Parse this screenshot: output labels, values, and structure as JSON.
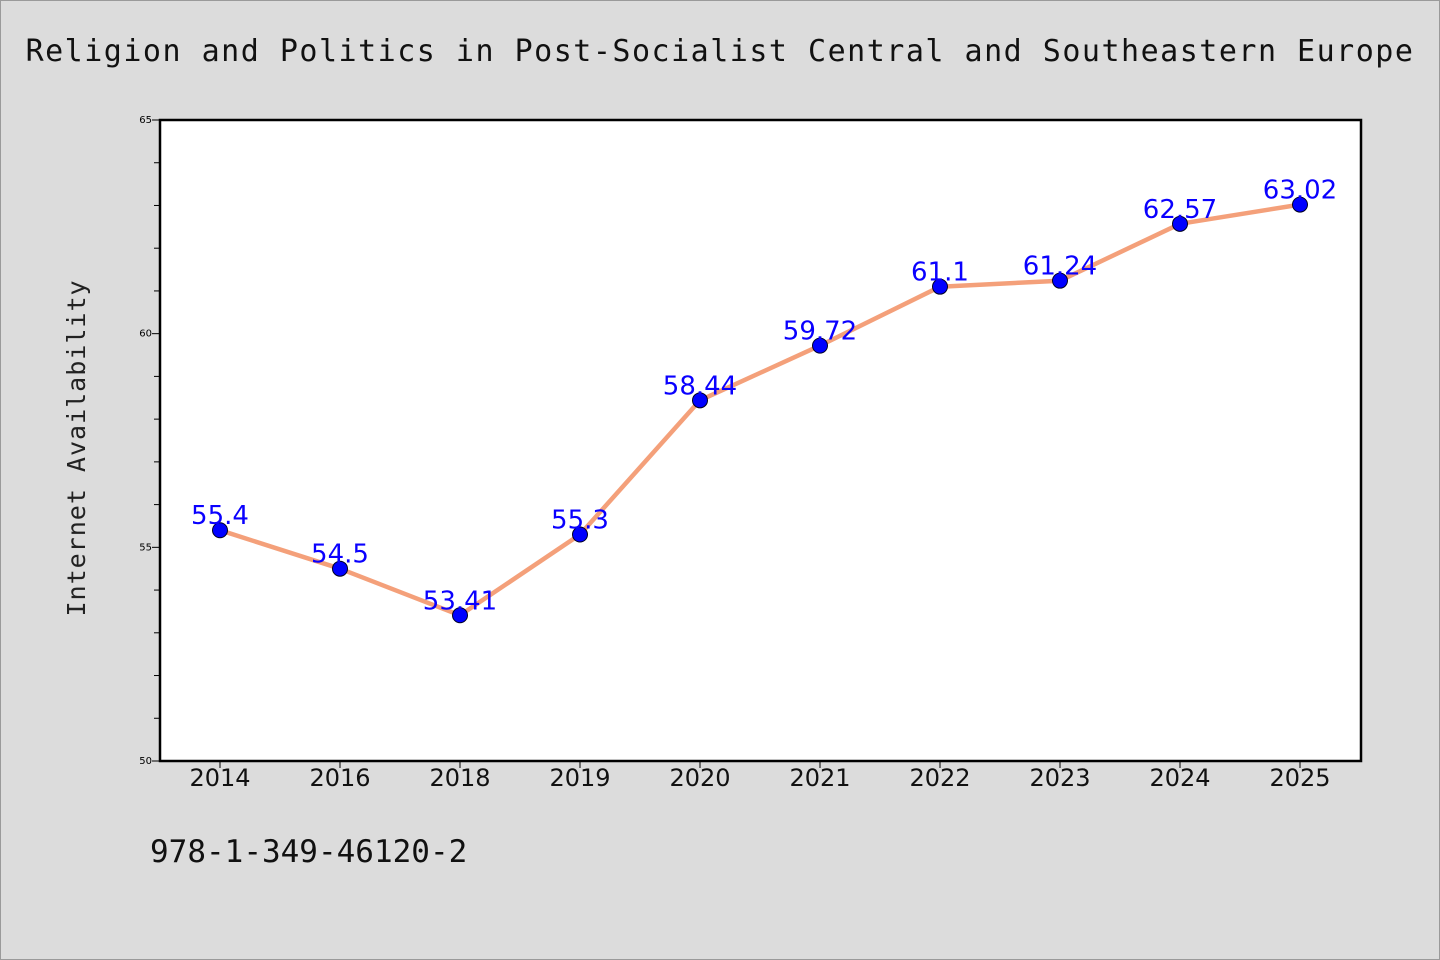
{
  "chart_data": {
    "type": "line",
    "title": "Religion and Politics in Post-Socialist Central and Southeastern Europe",
    "xlabel": "",
    "ylabel": "Internet Availability",
    "categories": [
      "2014",
      "2016",
      "2018",
      "2019",
      "2020",
      "2021",
      "2022",
      "2023",
      "2024",
      "2025"
    ],
    "values": [
      55.4,
      54.5,
      53.41,
      55.3,
      58.44,
      59.72,
      61.1,
      61.24,
      62.57,
      63.02
    ],
    "data_labels": [
      "55.4",
      "54.5",
      "53.41",
      "55.3",
      "58.44",
      "59.72",
      "61.1",
      "61.24",
      "62.57",
      "63.02"
    ],
    "ylim": [
      50,
      65
    ],
    "y_ticks": [
      50,
      55,
      60,
      65
    ],
    "y_tick_labels": [
      "50",
      "55",
      "60",
      "65"
    ],
    "grid": false,
    "legend": "none",
    "colors": {
      "line": "#f4a07a",
      "marker": "#0000ff",
      "label": "#0a00ff",
      "background": "#dcdcdc",
      "plot_background": "#ffffff"
    }
  },
  "footer": {
    "isbn": "978-1-349-46120-2"
  }
}
